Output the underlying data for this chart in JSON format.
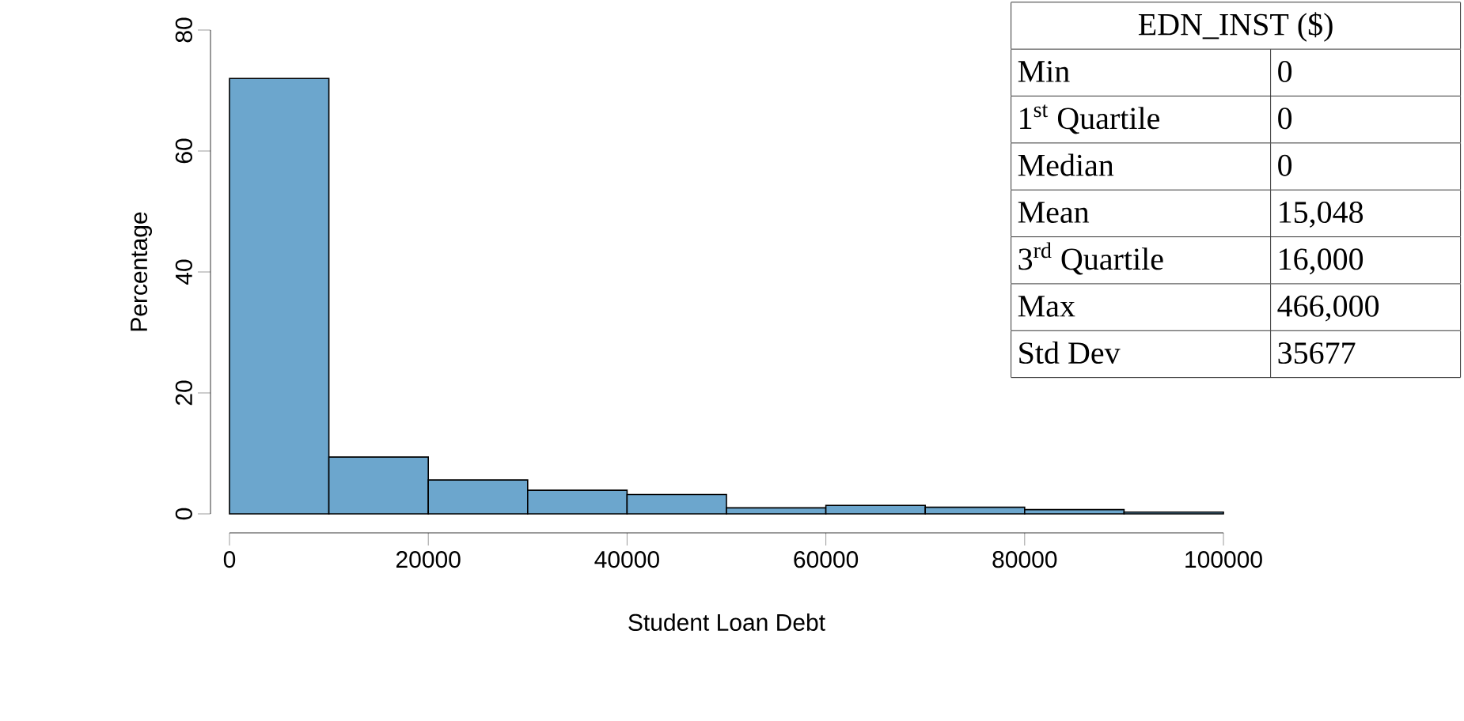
{
  "chart_data": {
    "type": "histogram",
    "xlabel": "Student Loan Debt",
    "ylabel": "Percentage",
    "bins": [
      0,
      10000,
      20000,
      30000,
      40000,
      50000,
      60000,
      70000,
      80000,
      90000,
      100000
    ],
    "values": [
      72,
      9.4,
      5.6,
      3.9,
      3.2,
      1.0,
      1.4,
      1.1,
      0.7,
      0.3
    ],
    "color": "#6ca6cd",
    "xlim": [
      0,
      100000
    ],
    "xticks": [
      0,
      20000,
      40000,
      60000,
      80000,
      100000
    ],
    "ylim": [
      0,
      80
    ],
    "yticks": [
      0,
      20,
      40,
      60,
      80
    ],
    "annotations": [
      "EDN_INST ($)",
      "Min",
      "0",
      "1$^{st}$ Quartile",
      "0",
      "Median",
      "0",
      "Mean",
      "15,048",
      "3$^{rd}$ Quartile",
      "16,000",
      "Max",
      "466,000",
      "Std Dev",
      "35677"
    ]
  }
}
